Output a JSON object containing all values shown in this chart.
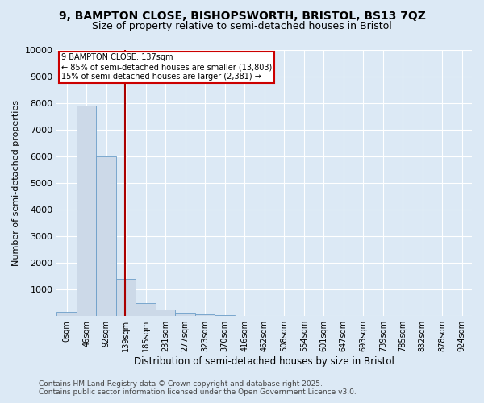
{
  "title": "9, BAMPTON CLOSE, BISHOPSWORTH, BRISTOL, BS13 7QZ",
  "subtitle": "Size of property relative to semi-detached houses in Bristol",
  "xlabel": "Distribution of semi-detached houses by size in Bristol",
  "ylabel": "Number of semi-detached properties",
  "categories": [
    "0sqm",
    "46sqm",
    "92sqm",
    "139sqm",
    "185sqm",
    "231sqm",
    "277sqm",
    "323sqm",
    "370sqm",
    "416sqm",
    "462sqm",
    "508sqm",
    "554sqm",
    "601sqm",
    "647sqm",
    "693sqm",
    "739sqm",
    "785sqm",
    "832sqm",
    "878sqm",
    "924sqm"
  ],
  "values": [
    150,
    7900,
    6000,
    1400,
    480,
    230,
    120,
    70,
    40,
    10,
    5,
    3,
    2,
    1,
    1,
    0,
    0,
    0,
    0,
    0,
    0
  ],
  "bar_color": "#ccd9e8",
  "bar_edge_color": "#6b9ec8",
  "red_line_color": "#aa0000",
  "annotation_title": "9 BAMPTON CLOSE: 137sqm",
  "annotation_line1": "← 85% of semi-detached houses are smaller (13,803)",
  "annotation_line2": "15% of semi-detached houses are larger (2,381) →",
  "annotation_box_color": "#cc0000",
  "ylim": [
    0,
    10000
  ],
  "yticks": [
    0,
    1000,
    2000,
    3000,
    4000,
    5000,
    6000,
    7000,
    8000,
    9000,
    10000
  ],
  "footnote1": "Contains HM Land Registry data © Crown copyright and database right 2025.",
  "footnote2": "Contains public sector information licensed under the Open Government Licence v3.0.",
  "background_color": "#dce9f5",
  "plot_bg_color": "#dce9f5",
  "title_fontsize": 10,
  "subtitle_fontsize": 9,
  "grid_color": "#ffffff"
}
